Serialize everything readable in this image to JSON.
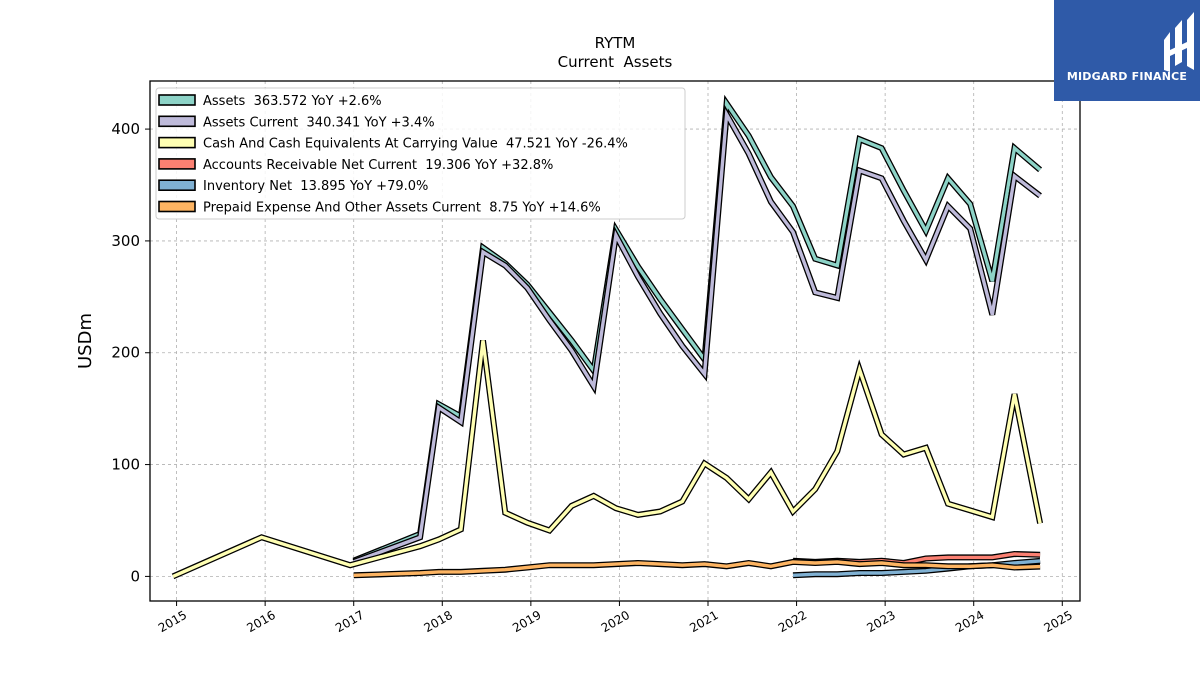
{
  "brand": {
    "name": "MIDGARD FINANCE",
    "color": "#2f5aa8"
  },
  "chart_data": {
    "type": "line",
    "title": "RYTM",
    "subtitle": "Current  Assets",
    "xlabel": "",
    "ylabel": "USDm",
    "xlim": [
      2014.7,
      2025.2
    ],
    "ylim": [
      -22,
      443
    ],
    "xticks": [
      2015,
      2016,
      2017,
      2018,
      2019,
      2020,
      2021,
      2022,
      2023,
      2024,
      2025
    ],
    "xtick_labels": [
      "2015",
      "2016",
      "2017",
      "2018",
      "2019",
      "2020",
      "2021",
      "2022",
      "2023",
      "2024",
      "2025"
    ],
    "yticks": [
      0,
      100,
      200,
      300,
      400
    ],
    "ytick_labels": [
      "0",
      "100",
      "200",
      "300",
      "400"
    ],
    "grid": true,
    "legend_position": "top-left",
    "series": [
      {
        "name": "Assets  363.572 YoY +2.6%",
        "color": "#8dd3c7",
        "points": [
          [
            2017.0,
            14
          ],
          [
            2017.75,
            38
          ],
          [
            2017.96,
            154
          ],
          [
            2018.21,
            143
          ],
          [
            2018.46,
            294
          ],
          [
            2018.71,
            280
          ],
          [
            2018.96,
            261
          ],
          [
            2019.21,
            236
          ],
          [
            2019.46,
            211
          ],
          [
            2019.71,
            184
          ],
          [
            2019.96,
            310
          ],
          [
            2020.21,
            277
          ],
          [
            2020.46,
            248
          ],
          [
            2020.71,
            221
          ],
          [
            2020.96,
            194
          ],
          [
            2021.21,
            423
          ],
          [
            2021.46,
            394
          ],
          [
            2021.71,
            357
          ],
          [
            2021.96,
            331
          ],
          [
            2022.21,
            284
          ],
          [
            2022.46,
            278
          ],
          [
            2022.71,
            391
          ],
          [
            2022.96,
            383
          ],
          [
            2023.21,
            345
          ],
          [
            2023.46,
            309
          ],
          [
            2023.71,
            356
          ],
          [
            2023.96,
            333
          ],
          [
            2024.21,
            264
          ],
          [
            2024.46,
            383
          ],
          [
            2024.75,
            363.572
          ]
        ]
      },
      {
        "name": "Assets Current  340.341 YoY +3.4%",
        "color": "#bebada",
        "points": [
          [
            2017.0,
            13
          ],
          [
            2017.75,
            35
          ],
          [
            2017.96,
            151
          ],
          [
            2018.21,
            138
          ],
          [
            2018.46,
            290
          ],
          [
            2018.71,
            278
          ],
          [
            2018.96,
            258
          ],
          [
            2019.21,
            229
          ],
          [
            2019.46,
            202
          ],
          [
            2019.71,
            170
          ],
          [
            2019.96,
            305
          ],
          [
            2020.21,
            268
          ],
          [
            2020.46,
            235
          ],
          [
            2020.71,
            206
          ],
          [
            2020.96,
            181
          ],
          [
            2021.21,
            413
          ],
          [
            2021.46,
            378
          ],
          [
            2021.71,
            335
          ],
          [
            2021.96,
            308
          ],
          [
            2022.21,
            254
          ],
          [
            2022.46,
            249
          ],
          [
            2022.71,
            363
          ],
          [
            2022.96,
            356
          ],
          [
            2023.21,
            318
          ],
          [
            2023.46,
            283
          ],
          [
            2023.71,
            331
          ],
          [
            2023.96,
            311
          ],
          [
            2024.21,
            234
          ],
          [
            2024.46,
            358
          ],
          [
            2024.75,
            340.341
          ]
        ]
      },
      {
        "name": "Cash And Cash Equivalents At Carrying Value  47.521 YoY -26.4%",
        "color": "#ffffb3",
        "points": [
          [
            2014.96,
            0
          ],
          [
            2015.96,
            35
          ],
          [
            2016.96,
            10
          ],
          [
            2017.75,
            27
          ],
          [
            2017.96,
            33
          ],
          [
            2018.21,
            42
          ],
          [
            2018.46,
            211
          ],
          [
            2018.71,
            57
          ],
          [
            2018.96,
            48
          ],
          [
            2019.21,
            41
          ],
          [
            2019.46,
            63
          ],
          [
            2019.71,
            72
          ],
          [
            2019.96,
            61
          ],
          [
            2020.21,
            55
          ],
          [
            2020.46,
            58
          ],
          [
            2020.71,
            67
          ],
          [
            2020.96,
            101
          ],
          [
            2021.21,
            88
          ],
          [
            2021.46,
            69
          ],
          [
            2021.71,
            93
          ],
          [
            2021.96,
            58
          ],
          [
            2022.21,
            78
          ],
          [
            2022.46,
            112
          ],
          [
            2022.71,
            185
          ],
          [
            2022.96,
            127
          ],
          [
            2023.21,
            109
          ],
          [
            2023.46,
            115
          ],
          [
            2023.71,
            65
          ],
          [
            2023.96,
            59
          ],
          [
            2024.21,
            53
          ],
          [
            2024.46,
            163
          ],
          [
            2024.75,
            47.521
          ]
        ]
      },
      {
        "name": "Accounts Receivable Net Current  19.306 YoY +32.8%",
        "color": "#fb8072",
        "points": [
          [
            2021.96,
            14
          ],
          [
            2022.21,
            13
          ],
          [
            2022.46,
            14
          ],
          [
            2022.71,
            13
          ],
          [
            2022.96,
            14
          ],
          [
            2023.21,
            12
          ],
          [
            2023.46,
            16
          ],
          [
            2023.71,
            17
          ],
          [
            2023.96,
            17
          ],
          [
            2024.21,
            17
          ],
          [
            2024.46,
            20
          ],
          [
            2024.75,
            19.306
          ]
        ]
      },
      {
        "name": "Inventory Net  13.895 YoY +79.0%",
        "color": "#80b1d3",
        "points": [
          [
            2021.96,
            1
          ],
          [
            2022.21,
            2
          ],
          [
            2022.46,
            2
          ],
          [
            2022.71,
            3
          ],
          [
            2022.96,
            3
          ],
          [
            2023.21,
            4
          ],
          [
            2023.46,
            5
          ],
          [
            2023.71,
            7
          ],
          [
            2023.96,
            9
          ],
          [
            2024.21,
            10
          ],
          [
            2024.46,
            12
          ],
          [
            2024.75,
            13.895
          ]
        ]
      },
      {
        "name": "Prepaid Expense And Other Assets Current  8.75 YoY +14.6%",
        "color": "#fdb462",
        "points": [
          [
            2017.0,
            1
          ],
          [
            2017.75,
            3
          ],
          [
            2017.96,
            4
          ],
          [
            2018.21,
            4
          ],
          [
            2018.46,
            5
          ],
          [
            2018.71,
            6
          ],
          [
            2018.96,
            8
          ],
          [
            2019.21,
            10
          ],
          [
            2019.46,
            10
          ],
          [
            2019.71,
            10
          ],
          [
            2019.96,
            11
          ],
          [
            2020.21,
            12
          ],
          [
            2020.46,
            11
          ],
          [
            2020.71,
            10
          ],
          [
            2020.96,
            11
          ],
          [
            2021.21,
            9
          ],
          [
            2021.46,
            12
          ],
          [
            2021.71,
            9
          ],
          [
            2021.96,
            13
          ],
          [
            2022.21,
            12
          ],
          [
            2022.46,
            13
          ],
          [
            2022.71,
            11
          ],
          [
            2022.96,
            12
          ],
          [
            2023.21,
            10
          ],
          [
            2023.46,
            10
          ],
          [
            2023.71,
            9
          ],
          [
            2023.96,
            9
          ],
          [
            2024.21,
            10
          ],
          [
            2024.46,
            8
          ],
          [
            2024.75,
            8.75
          ]
        ]
      }
    ]
  }
}
